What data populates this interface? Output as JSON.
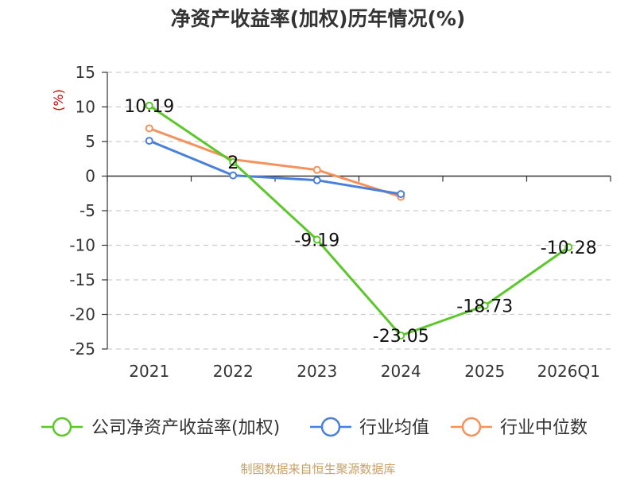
{
  "chart_data": {
    "type": "line",
    "title": "净资产收益率(加权)历年情况(%)",
    "ylabel": "(%)",
    "xlabel": "",
    "categories": [
      "2021",
      "2022",
      "2023",
      "2024",
      "2025",
      "2026Q1"
    ],
    "ylim": [
      -25,
      15
    ],
    "yticks": [
      15,
      10,
      5,
      0,
      -5,
      -10,
      -15,
      -20,
      -25
    ],
    "grid": true,
    "legend_position": "bottom",
    "series": [
      {
        "name": "公司净资产收益率(加权)",
        "color": "#5cc72a",
        "values": [
          10.19,
          2,
          -9.19,
          -23.05,
          -18.73,
          -10.28
        ],
        "labels": [
          "10.19",
          "2",
          "-9.19",
          "-23.05",
          "-18.73",
          "-10.28"
        ]
      },
      {
        "name": "行业均值",
        "color": "#4a7fdc",
        "values": [
          5.1,
          0.1,
          -0.6,
          -2.6,
          null,
          null
        ]
      },
      {
        "name": "行业中位数",
        "color": "#f5925c",
        "values": [
          6.9,
          2.4,
          0.9,
          -3.0,
          null,
          null
        ]
      }
    ]
  },
  "footer": {
    "source": "制图数据来自恒生聚源数据库"
  }
}
